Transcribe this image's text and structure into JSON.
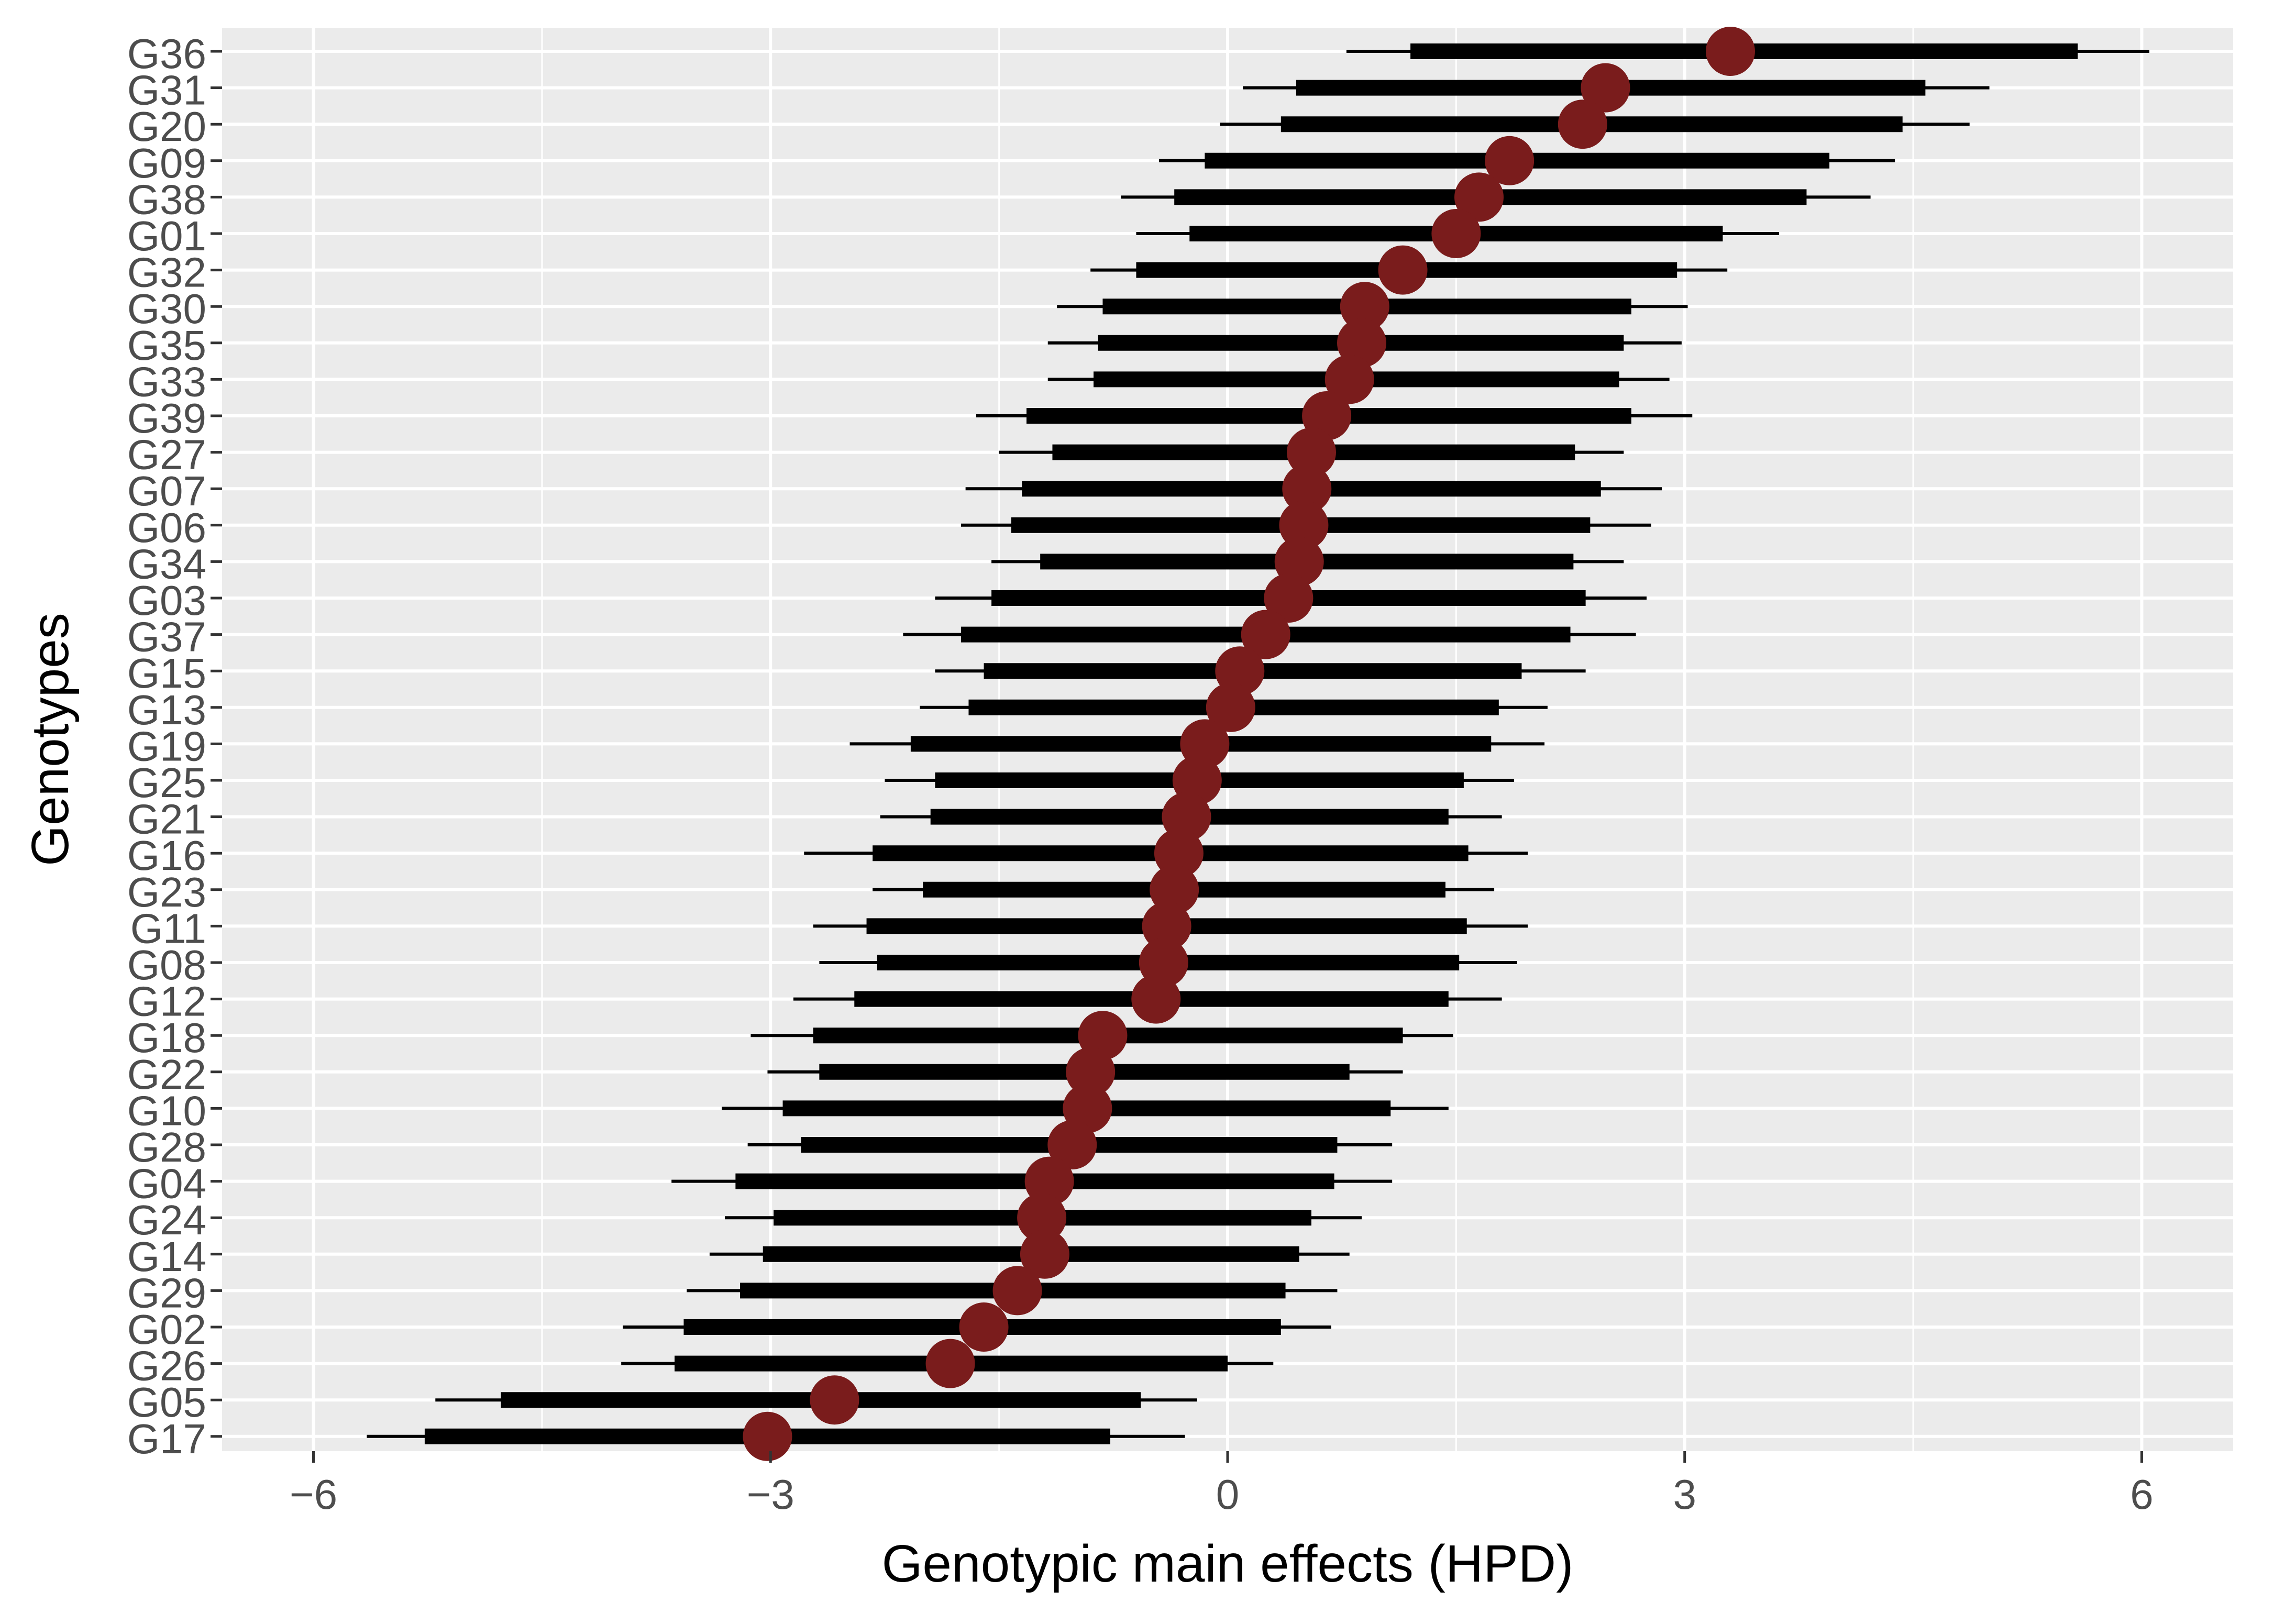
{
  "chart_data": {
    "type": "forest",
    "xlabel": "Genotypic main effects (HPD)",
    "ylabel": "Genotypes",
    "xlim": [
      -6.6,
      6.6
    ],
    "xticks": [
      -6,
      -3,
      0,
      3,
      6
    ],
    "xtick_labels": [
      "−6",
      "−3",
      "0",
      "3",
      "6"
    ],
    "grid": true,
    "colors": {
      "panel_background": "#ebebeb",
      "grid": "#ffffff",
      "interval": "#000000",
      "point": "#7a1c1c",
      "tick_label": "#4d4d4d"
    },
    "genotypes": [
      {
        "name": "G36",
        "estimate": 3.3,
        "outer": [
          0.78,
          6.05
        ],
        "inner": [
          1.2,
          5.58
        ]
      },
      {
        "name": "G31",
        "estimate": 2.48,
        "outer": [
          0.1,
          5.0
        ],
        "inner": [
          0.45,
          4.58
        ]
      },
      {
        "name": "G20",
        "estimate": 2.33,
        "outer": [
          -0.05,
          4.87
        ],
        "inner": [
          0.35,
          4.43
        ]
      },
      {
        "name": "G09",
        "estimate": 1.85,
        "outer": [
          -0.45,
          4.38
        ],
        "inner": [
          -0.15,
          3.95
        ]
      },
      {
        "name": "G38",
        "estimate": 1.65,
        "outer": [
          -0.7,
          4.22
        ],
        "inner": [
          -0.35,
          3.8
        ]
      },
      {
        "name": "G01",
        "estimate": 1.5,
        "outer": [
          -0.6,
          3.62
        ],
        "inner": [
          -0.25,
          3.25
        ]
      },
      {
        "name": "G32",
        "estimate": 1.15,
        "outer": [
          -0.9,
          3.28
        ],
        "inner": [
          -0.6,
          2.95
        ]
      },
      {
        "name": "G30",
        "estimate": 0.9,
        "outer": [
          -1.12,
          3.02
        ],
        "inner": [
          -0.82,
          2.65
        ]
      },
      {
        "name": "G35",
        "estimate": 0.88,
        "outer": [
          -1.18,
          2.98
        ],
        "inner": [
          -0.85,
          2.6
        ]
      },
      {
        "name": "G33",
        "estimate": 0.8,
        "outer": [
          -1.18,
          2.9
        ],
        "inner": [
          -0.88,
          2.57
        ]
      },
      {
        "name": "G39",
        "estimate": 0.65,
        "outer": [
          -1.65,
          3.05
        ],
        "inner": [
          -1.32,
          2.65
        ]
      },
      {
        "name": "G27",
        "estimate": 0.55,
        "outer": [
          -1.5,
          2.6
        ],
        "inner": [
          -1.15,
          2.28
        ]
      },
      {
        "name": "G07",
        "estimate": 0.52,
        "outer": [
          -1.72,
          2.85
        ],
        "inner": [
          -1.35,
          2.45
        ]
      },
      {
        "name": "G06",
        "estimate": 0.5,
        "outer": [
          -1.75,
          2.78
        ],
        "inner": [
          -1.42,
          2.38
        ]
      },
      {
        "name": "G34",
        "estimate": 0.47,
        "outer": [
          -1.55,
          2.6
        ],
        "inner": [
          -1.23,
          2.27
        ]
      },
      {
        "name": "G03",
        "estimate": 0.4,
        "outer": [
          -1.92,
          2.75
        ],
        "inner": [
          -1.55,
          2.35
        ]
      },
      {
        "name": "G37",
        "estimate": 0.25,
        "outer": [
          -2.13,
          2.68
        ],
        "inner": [
          -1.75,
          2.25
        ]
      },
      {
        "name": "G15",
        "estimate": 0.08,
        "outer": [
          -1.92,
          2.35
        ],
        "inner": [
          -1.6,
          1.93
        ]
      },
      {
        "name": "G13",
        "estimate": 0.02,
        "outer": [
          -2.02,
          2.1
        ],
        "inner": [
          -1.7,
          1.78
        ]
      },
      {
        "name": "G19",
        "estimate": -0.15,
        "outer": [
          -2.48,
          2.08
        ],
        "inner": [
          -2.08,
          1.73
        ]
      },
      {
        "name": "G25",
        "estimate": -0.2,
        "outer": [
          -2.25,
          1.88
        ],
        "inner": [
          -1.92,
          1.55
        ]
      },
      {
        "name": "G21",
        "estimate": -0.27,
        "outer": [
          -2.28,
          1.8
        ],
        "inner": [
          -1.95,
          1.45
        ]
      },
      {
        "name": "G16",
        "estimate": -0.32,
        "outer": [
          -2.78,
          1.97
        ],
        "inner": [
          -2.33,
          1.58
        ]
      },
      {
        "name": "G23",
        "estimate": -0.35,
        "outer": [
          -2.33,
          1.75
        ],
        "inner": [
          -2.0,
          1.43
        ]
      },
      {
        "name": "G11",
        "estimate": -0.4,
        "outer": [
          -2.72,
          1.97
        ],
        "inner": [
          -2.37,
          1.57
        ]
      },
      {
        "name": "G08",
        "estimate": -0.42,
        "outer": [
          -2.68,
          1.9
        ],
        "inner": [
          -2.3,
          1.52
        ]
      },
      {
        "name": "G12",
        "estimate": -0.47,
        "outer": [
          -2.85,
          1.8
        ],
        "inner": [
          -2.45,
          1.45
        ]
      },
      {
        "name": "G18",
        "estimate": -0.82,
        "outer": [
          -3.13,
          1.48
        ],
        "inner": [
          -2.72,
          1.15
        ]
      },
      {
        "name": "G22",
        "estimate": -0.9,
        "outer": [
          -3.02,
          1.15
        ],
        "inner": [
          -2.68,
          0.8
        ]
      },
      {
        "name": "G10",
        "estimate": -0.92,
        "outer": [
          -3.32,
          1.45
        ],
        "inner": [
          -2.92,
          1.07
        ]
      },
      {
        "name": "G28",
        "estimate": -1.02,
        "outer": [
          -3.15,
          1.08
        ],
        "inner": [
          -2.8,
          0.72
        ]
      },
      {
        "name": "G04",
        "estimate": -1.17,
        "outer": [
          -3.65,
          1.08
        ],
        "inner": [
          -3.23,
          0.7
        ]
      },
      {
        "name": "G24",
        "estimate": -1.22,
        "outer": [
          -3.3,
          0.88
        ],
        "inner": [
          -2.98,
          0.55
        ]
      },
      {
        "name": "G14",
        "estimate": -1.2,
        "outer": [
          -3.4,
          0.8
        ],
        "inner": [
          -3.05,
          0.47
        ]
      },
      {
        "name": "G29",
        "estimate": -1.38,
        "outer": [
          -3.55,
          0.72
        ],
        "inner": [
          -3.2,
          0.38
        ]
      },
      {
        "name": "G02",
        "estimate": -1.6,
        "outer": [
          -3.97,
          0.68
        ],
        "inner": [
          -3.57,
          0.35
        ]
      },
      {
        "name": "G26",
        "estimate": -1.82,
        "outer": [
          -3.98,
          0.3
        ],
        "inner": [
          -3.63,
          0.0
        ]
      },
      {
        "name": "G05",
        "estimate": -2.58,
        "outer": [
          -5.2,
          -0.2
        ],
        "inner": [
          -4.77,
          -0.57
        ]
      },
      {
        "name": "G17",
        "estimate": -3.02,
        "outer": [
          -5.65,
          -0.28
        ],
        "inner": [
          -5.27,
          -0.77
        ]
      }
    ]
  }
}
